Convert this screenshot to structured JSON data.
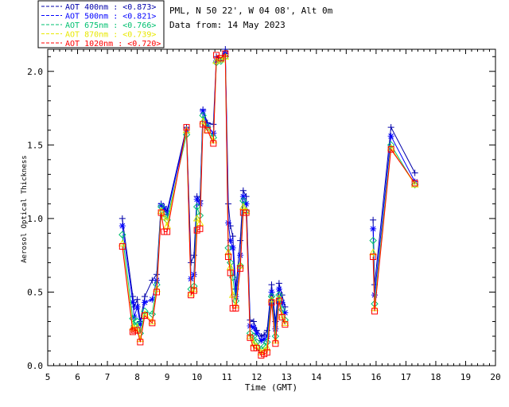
{
  "info": {
    "station": "PML, N 50 22', W 04 08', Alt 0m",
    "date": "Data from: 14 May 2023"
  },
  "chart_data": {
    "type": "scatter",
    "xlabel": "Time (GMT)",
    "ylabel": "Aerosol Optical Thickness",
    "xlim": [
      5,
      20
    ],
    "ylim": [
      0,
      2.15
    ],
    "xticks": [
      "5",
      "6",
      "7",
      "8",
      "9",
      "10",
      "11",
      "12",
      "13",
      "14",
      "15",
      "16",
      "17",
      "18",
      "19",
      "20"
    ],
    "yticks": [
      "0.0",
      "0.5",
      "1.0",
      "1.5",
      "2.0"
    ],
    "ytick_values": [
      0,
      0.5,
      1.0,
      1.5,
      2.0
    ],
    "grid": false,
    "legend_placement": "top-left",
    "x": [
      7.5,
      7.85,
      7.9,
      8.0,
      8.1,
      8.25,
      8.5,
      8.65,
      8.8,
      8.9,
      9.0,
      9.65,
      9.8,
      9.9,
      10.0,
      10.1,
      10.2,
      10.35,
      10.55,
      10.65,
      10.8,
      10.95,
      11.05,
      11.12,
      11.2,
      11.3,
      11.45,
      11.55,
      11.65,
      11.78,
      11.9,
      12.0,
      12.15,
      12.25,
      12.35,
      12.5,
      12.63,
      12.75,
      12.85,
      12.95,
      15.9,
      15.95,
      16.5,
      17.3
    ],
    "series": [
      {
        "name": "AOT  400nm : <0.873>",
        "color": "#0000aa",
        "marker": "plus",
        "values": [
          1.0,
          0.47,
          0.4,
          0.45,
          0.3,
          0.47,
          0.58,
          0.62,
          1.1,
          1.08,
          1.05,
          1.62,
          0.7,
          0.75,
          1.15,
          1.12,
          1.74,
          1.65,
          1.64,
          2.1,
          2.08,
          2.15,
          1.1,
          0.95,
          0.88,
          0.52,
          0.85,
          1.19,
          1.15,
          0.31,
          0.3,
          0.24,
          0.2,
          0.21,
          0.24,
          0.55,
          0.3,
          0.56,
          0.48,
          0.4,
          0.99,
          0.55,
          1.62,
          1.31
        ]
      },
      {
        "name": "AOT  500nm : <0.821>",
        "color": "#0000ff",
        "marker": "asterisk",
        "values": [
          0.95,
          0.43,
          0.33,
          0.4,
          0.28,
          0.43,
          0.45,
          0.58,
          1.09,
          1.07,
          1.03,
          1.6,
          0.59,
          0.62,
          1.13,
          1.1,
          1.73,
          1.63,
          1.58,
          2.07,
          2.08,
          2.12,
          0.97,
          0.85,
          0.8,
          0.47,
          0.75,
          1.15,
          1.1,
          0.27,
          0.26,
          0.22,
          0.17,
          0.18,
          0.2,
          0.5,
          0.25,
          0.52,
          0.43,
          0.36,
          0.93,
          0.48,
          1.56,
          1.25
        ]
      },
      {
        "name": "AOT  675nm : <0.766>",
        "color": "#00c070",
        "marker": "diamond",
        "values": [
          0.89,
          0.32,
          0.27,
          0.3,
          0.22,
          0.37,
          0.35,
          0.55,
          1.08,
          1.03,
          0.99,
          1.57,
          0.52,
          0.54,
          1.08,
          1.02,
          1.7,
          1.62,
          1.55,
          2.06,
          2.07,
          2.1,
          0.8,
          0.7,
          0.6,
          0.44,
          0.68,
          1.12,
          1.05,
          0.22,
          0.2,
          0.16,
          0.11,
          0.13,
          0.16,
          0.47,
          0.2,
          0.48,
          0.38,
          0.31,
          0.85,
          0.42,
          1.5,
          1.23
        ]
      },
      {
        "name": "AOT  870nm : <0.739>",
        "color": "#e8e800",
        "marker": "triangle",
        "values": [
          0.83,
          0.26,
          0.25,
          0.26,
          0.18,
          0.35,
          0.3,
          0.52,
          1.05,
          1.01,
          0.95,
          1.6,
          0.49,
          0.52,
          1.0,
          0.97,
          1.66,
          1.6,
          1.53,
          2.07,
          2.08,
          2.1,
          0.77,
          0.67,
          0.48,
          0.41,
          0.68,
          1.08,
          1.05,
          0.2,
          0.15,
          0.13,
          0.09,
          0.1,
          0.12,
          0.45,
          0.17,
          0.46,
          0.34,
          0.29,
          0.77,
          0.39,
          1.48,
          1.23
        ]
      },
      {
        "name": "AOT 1020nm : <0.720>",
        "color": "#ff0000",
        "marker": "square",
        "values": [
          0.81,
          0.23,
          0.24,
          0.24,
          0.16,
          0.34,
          0.29,
          0.5,
          1.04,
          0.91,
          0.91,
          1.62,
          0.48,
          0.51,
          0.92,
          0.93,
          1.64,
          1.6,
          1.51,
          2.11,
          2.09,
          2.12,
          0.74,
          0.63,
          0.39,
          0.39,
          0.66,
          1.04,
          1.04,
          0.19,
          0.12,
          0.12,
          0.07,
          0.08,
          0.09,
          0.43,
          0.15,
          0.44,
          0.33,
          0.28,
          0.74,
          0.37,
          1.47,
          1.24
        ]
      }
    ]
  }
}
